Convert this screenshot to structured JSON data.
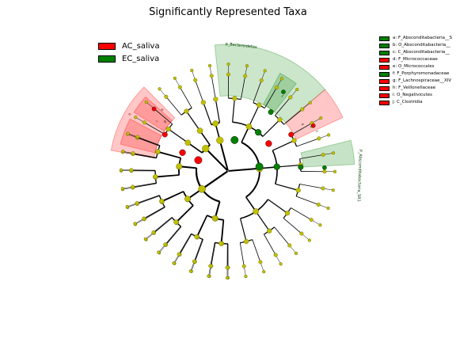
{
  "chart_data": {
    "type": "cladogram",
    "title": "Significantly Represented Taxa",
    "colors": {
      "AC_saliva": "#ff0000",
      "EC_saliva": "#008000",
      "nonsignificant_node": "#c0c000",
      "branch": "#000000"
    },
    "groups": [
      {
        "name": "AC_saliva",
        "color": "#ff0000"
      },
      {
        "name": "EC_saliva",
        "color": "#008000"
      }
    ],
    "clade_legend": [
      {
        "key": "a",
        "label": "a: F_Absconditabacteria__S",
        "group": "EC_saliva"
      },
      {
        "key": "b",
        "label": "b: O_Absconditabacteria__",
        "group": "EC_saliva"
      },
      {
        "key": "c",
        "label": "c: C_Absconditabacteria__",
        "group": "EC_saliva"
      },
      {
        "key": "d",
        "label": "d: F_Micrococcaceae",
        "group": "AC_saliva"
      },
      {
        "key": "e",
        "label": "e: O_Micrococcales",
        "group": "AC_saliva"
      },
      {
        "key": "f",
        "label": "f: F_Porphyromonadaceae",
        "group": "EC_saliva"
      },
      {
        "key": "g",
        "label": "g: F_Lachnospiraceae__XIV",
        "group": "AC_saliva"
      },
      {
        "key": "h",
        "label": "h: F_Veillonellaceae",
        "group": "AC_saliva"
      },
      {
        "key": "i",
        "label": "i: O_Negativicutes",
        "group": "AC_saliva"
      },
      {
        "key": "j",
        "label": "j: C_Clostridia",
        "group": "AC_saliva"
      }
    ],
    "sector_labels": [
      {
        "text": "p_Bacteroidetes",
        "group": "EC_saliva"
      },
      {
        "text": "P_Absconditabacteria_SR1",
        "group": "EC_saliva"
      },
      {
        "text": "f",
        "group": "EC_saliva"
      },
      {
        "text": "n",
        "group": "AC_saliva"
      },
      {
        "text": "j",
        "group": "AC_saliva"
      },
      {
        "text": "i",
        "group": "AC_saliva"
      },
      {
        "text": "h",
        "group": "AC_saliva"
      },
      {
        "text": "g",
        "group": "AC_saliva"
      },
      {
        "text": "a",
        "group": "EC_saliva"
      },
      {
        "text": "b",
        "group": "EC_saliva"
      },
      {
        "text": "c",
        "group": "EC_saliva"
      }
    ],
    "significant_taxa": [
      {
        "taxon": "p_Bacteroidetes",
        "group": "EC_saliva"
      },
      {
        "taxon": "f_Porphyromonadaceae",
        "group": "EC_saliva"
      },
      {
        "taxon": "P_Absconditabacteria_SR1",
        "group": "EC_saliva"
      },
      {
        "taxon": "c_Absconditabacteria_SR1",
        "group": "EC_saliva"
      },
      {
        "taxon": "o_Absconditabacteria_SR1",
        "group": "EC_saliva"
      },
      {
        "taxon": "f_Absconditabacteria_SR1",
        "group": "EC_saliva"
      },
      {
        "taxon": "c_Clostridia",
        "group": "AC_saliva"
      },
      {
        "taxon": "f_Lachnospiraceae_XIV",
        "group": "AC_saliva"
      },
      {
        "taxon": "o_Negativicutes",
        "group": "AC_saliva"
      },
      {
        "taxon": "f_Veillonellaceae",
        "group": "AC_saliva"
      },
      {
        "taxon": "o_Micrococcales",
        "group": "AC_saliva"
      },
      {
        "taxon": "f_Micrococcaceae",
        "group": "AC_saliva"
      }
    ]
  }
}
